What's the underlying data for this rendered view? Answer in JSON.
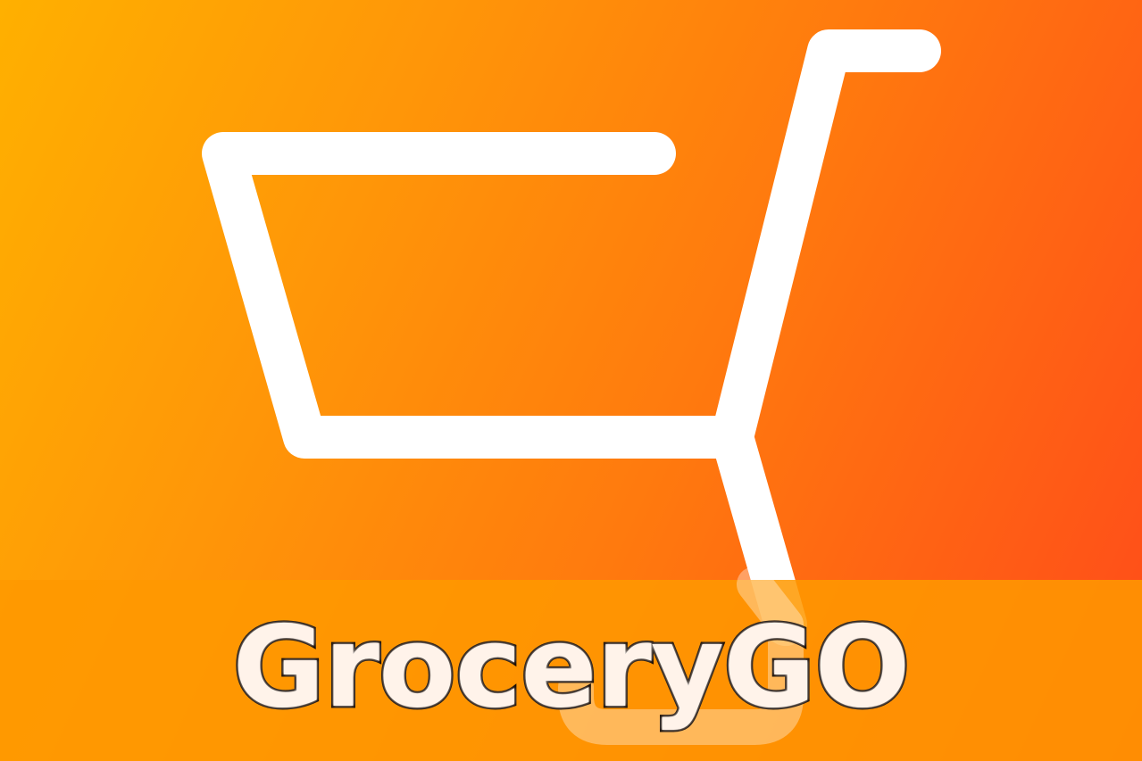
{
  "brand": {
    "name": "GroceryGO"
  },
  "icon": {
    "name": "shopping-cart-icon",
    "color": "#FFFFFF"
  },
  "colors": {
    "gradient_start": "#FFB000",
    "gradient_mid": "#FF7A0E",
    "gradient_end": "#FF4A1A",
    "banner": "#FF9900",
    "text_fill": "#FFF3EA",
    "text_outline": "#1A0D05"
  }
}
